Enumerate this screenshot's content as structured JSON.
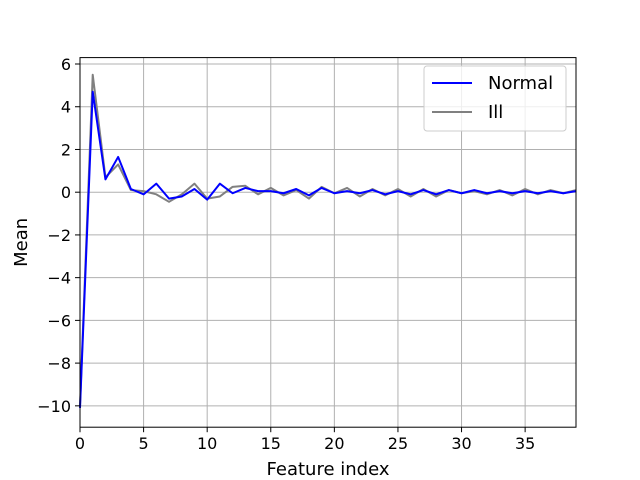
{
  "chart_data": {
    "type": "line",
    "xlabel": "Feature index",
    "ylabel": "Mean",
    "xlim": [
      0,
      39
    ],
    "ylim": [
      -11,
      6.3
    ],
    "xticks": [
      0,
      5,
      10,
      15,
      20,
      25,
      30,
      35
    ],
    "yticks": [
      -10,
      -8,
      -6,
      -4,
      -2,
      0,
      2,
      4,
      6
    ],
    "ytick_labels": [
      "−10",
      "−8",
      "−6",
      "−4",
      "−2",
      "0",
      "2",
      "4",
      "6"
    ],
    "grid": true,
    "legend_position": "upper right",
    "x": [
      0,
      1,
      2,
      3,
      4,
      5,
      6,
      7,
      8,
      9,
      10,
      11,
      12,
      13,
      14,
      15,
      16,
      17,
      18,
      19,
      20,
      21,
      22,
      23,
      24,
      25,
      26,
      27,
      28,
      29,
      30,
      31,
      32,
      33,
      34,
      35,
      36,
      37,
      38,
      39
    ],
    "series": [
      {
        "name": "Normal",
        "color": "#0000ff",
        "values": [
          -10.1,
          4.7,
          0.6,
          1.65,
          0.15,
          -0.1,
          0.4,
          -0.3,
          -0.2,
          0.15,
          -0.35,
          0.4,
          -0.05,
          0.2,
          0.05,
          0.05,
          -0.05,
          0.15,
          -0.15,
          0.2,
          -0.05,
          0.05,
          -0.05,
          0.1,
          -0.1,
          0.05,
          -0.1,
          0.1,
          -0.1,
          0.1,
          -0.05,
          0.1,
          -0.05,
          0.05,
          -0.05,
          0.05,
          -0.05,
          0.05,
          -0.05,
          0.05
        ]
      },
      {
        "name": "Ill",
        "color": "#808080",
        "values": [
          -10.0,
          5.5,
          0.7,
          1.3,
          0.1,
          0.05,
          -0.1,
          -0.45,
          -0.1,
          0.4,
          -0.3,
          -0.2,
          0.25,
          0.3,
          -0.1,
          0.2,
          -0.15,
          0.1,
          -0.3,
          0.25,
          -0.05,
          0.2,
          -0.2,
          0.15,
          -0.15,
          0.15,
          -0.2,
          0.15,
          -0.2,
          0.1,
          -0.05,
          0.05,
          -0.1,
          0.1,
          -0.15,
          0.15,
          -0.1,
          0.1,
          -0.05,
          0.1
        ]
      }
    ]
  }
}
